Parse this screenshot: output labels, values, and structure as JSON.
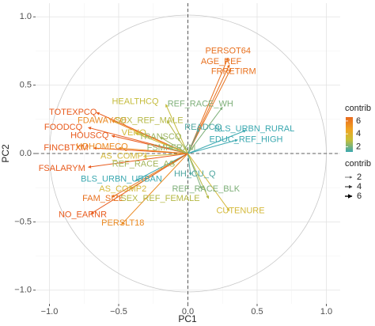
{
  "chart_data": {
    "type": "scatter",
    "subtype": "pca-variable-correlation-circle",
    "xlabel": "PC1",
    "ylabel": "PC2",
    "xlim": [
      -1.1,
      1.1
    ],
    "ylim": [
      -1.1,
      1.1
    ],
    "x_ticks": [
      -1.0,
      -0.5,
      0.0,
      0.5,
      1.0
    ],
    "y_ticks": [
      -1.0,
      -0.5,
      0.0,
      0.5,
      1.0
    ],
    "x_tick_labels": [
      "−1.0",
      "−0.5",
      "0.0",
      "0.5",
      "1.0"
    ],
    "y_tick_labels": [
      "−1.0",
      "−0.5",
      "0.0",
      "0.5",
      "1.0"
    ],
    "grid": true,
    "unit_circle": true,
    "reference_lines": "dashed at x=0 and y=0",
    "legend_placement": "right",
    "color_legend": {
      "title": "contrib",
      "ticks": [
        6,
        4,
        2
      ],
      "tick_labels": [
        "6",
        "4",
        "2"
      ],
      "gradient_colors": [
        "#e86a1e",
        "#f0a422",
        "#c8c037",
        "#3aa8b0"
      ]
    },
    "size_legend": {
      "title": "contrib",
      "entries": [
        "2",
        "4",
        "6"
      ],
      "colors": [
        "#555555",
        "#333333",
        "#000000"
      ]
    },
    "variables": [
      {
        "name": "PERSOT64",
        "x": 0.29,
        "y": 0.7,
        "color": "#e8701e",
        "label_x": 0.29,
        "label_y": 0.75
      },
      {
        "name": "AGE_REF",
        "x": 0.3,
        "y": 0.65,
        "color": "#e8701e",
        "label_x": 0.24,
        "label_y": 0.67
      },
      {
        "name": "FRRETIRM",
        "x": 0.31,
        "y": 0.62,
        "color": "#e8721f",
        "label_x": 0.33,
        "label_y": 0.6
      },
      {
        "name": "HEALTHCQ",
        "x": -0.16,
        "y": 0.36,
        "color": "#c5bc3c",
        "label_x": -0.38,
        "label_y": 0.38
      },
      {
        "name": "REF_RACE_WH",
        "x": 0.25,
        "y": 0.34,
        "color": "#7fb07a",
        "label_x": 0.09,
        "label_y": 0.36
      },
      {
        "name": "TOTEXPCQ",
        "x": -0.66,
        "y": 0.3,
        "color": "#e85a1c",
        "label_x": -0.83,
        "label_y": 0.3
      },
      {
        "name": "FDAWAYCQ",
        "x": -0.55,
        "y": 0.24,
        "color": "#eb8a22",
        "label_x": -0.62,
        "label_y": 0.24
      },
      {
        "name": "SEX_REF_MALE",
        "x": -0.15,
        "y": 0.24,
        "color": "#b5b845",
        "label_x": -0.28,
        "label_y": 0.24
      },
      {
        "name": "READCQ",
        "x": 0.08,
        "y": 0.18,
        "color": "#4fa6a0",
        "label_x": 0.11,
        "label_y": 0.19
      },
      {
        "name": "BLS_URBN_RURAL",
        "x": 0.42,
        "y": 0.17,
        "color": "#3aa8b0",
        "label_x": 0.48,
        "label_y": 0.18
      },
      {
        "name": "FOODCQ",
        "x": -0.72,
        "y": 0.19,
        "color": "#e85a1c",
        "label_x": -0.9,
        "label_y": 0.19
      },
      {
        "name": "VEHQ",
        "x": -0.38,
        "y": 0.15,
        "color": "#d0bb38",
        "label_x": -0.39,
        "label_y": 0.15
      },
      {
        "name": "TRANSCQ",
        "x": -0.2,
        "y": 0.12,
        "color": "#9cb460",
        "label_x": -0.2,
        "label_y": 0.12
      },
      {
        "name": "EDUC_REF_HIGH",
        "x": 0.36,
        "y": 0.1,
        "color": "#3aa8b0",
        "label_x": 0.42,
        "label_y": 0.1
      },
      {
        "name": "HOUSCQ",
        "x": -0.55,
        "y": 0.13,
        "color": "#e85a1c",
        "label_x": -0.71,
        "label_y": 0.13
      },
      {
        "name": "FINCBTXM",
        "x": -0.68,
        "y": 0.04,
        "color": "#e85a1c",
        "label_x": -0.88,
        "label_y": 0.04
      },
      {
        "name": "HDHOMECQ",
        "x": -0.5,
        "y": 0.04,
        "color": "#eb8a22",
        "label_x": -0.62,
        "label_y": 0.05
      },
      {
        "name": "FSMPFRXM",
        "x": -0.14,
        "y": 0.04,
        "color": "#8fb36c",
        "label_x": -0.12,
        "label_y": 0.04
      },
      {
        "name": "AS_COMP1",
        "x": -0.32,
        "y": -0.02,
        "color": "#d4b93a",
        "label_x": -0.46,
        "label_y": -0.02
      },
      {
        "name": "FSALARYM",
        "x": -0.72,
        "y": -0.1,
        "color": "#e85a1c",
        "label_x": -0.91,
        "label_y": -0.11
      },
      {
        "name": "REF_RACE_AS",
        "x": -0.12,
        "y": -0.08,
        "color": "#a5b55a",
        "label_x": -0.32,
        "label_y": -0.08
      },
      {
        "name": "HH_CU_Q",
        "x": 0.02,
        "y": -0.16,
        "color": "#4fa6a0",
        "label_x": 0.05,
        "label_y": -0.15
      },
      {
        "name": "BLS_URBN_URBAN",
        "x": -0.38,
        "y": -0.2,
        "color": "#3aa8b0",
        "label_x": -0.48,
        "label_y": -0.19
      },
      {
        "name": "AS_COMP2",
        "x": -0.42,
        "y": -0.26,
        "color": "#d4b93a",
        "label_x": -0.47,
        "label_y": -0.26
      },
      {
        "name": "REF_RACE_BLK",
        "x": 0.1,
        "y": -0.26,
        "color": "#7fb07a",
        "label_x": 0.13,
        "label_y": -0.26
      },
      {
        "name": "FAM_SIZE",
        "x": -0.55,
        "y": -0.32,
        "color": "#e8701e",
        "label_x": -0.61,
        "label_y": -0.33
      },
      {
        "name": "SEX_REF_FEMALE",
        "x": 0.15,
        "y": -0.33,
        "color": "#b5b845",
        "label_x": -0.2,
        "label_y": -0.33
      },
      {
        "name": "CUTENURE",
        "x": 0.3,
        "y": -0.42,
        "color": "#d4b93a",
        "label_x": 0.38,
        "label_y": -0.42
      },
      {
        "name": "NO_EARNR",
        "x": -0.7,
        "y": -0.44,
        "color": "#e85a1c",
        "label_x": -0.76,
        "label_y": -0.45
      },
      {
        "name": "PERSLT18",
        "x": -0.48,
        "y": -0.52,
        "color": "#eb8a22",
        "label_x": -0.47,
        "label_y": -0.51
      }
    ]
  }
}
